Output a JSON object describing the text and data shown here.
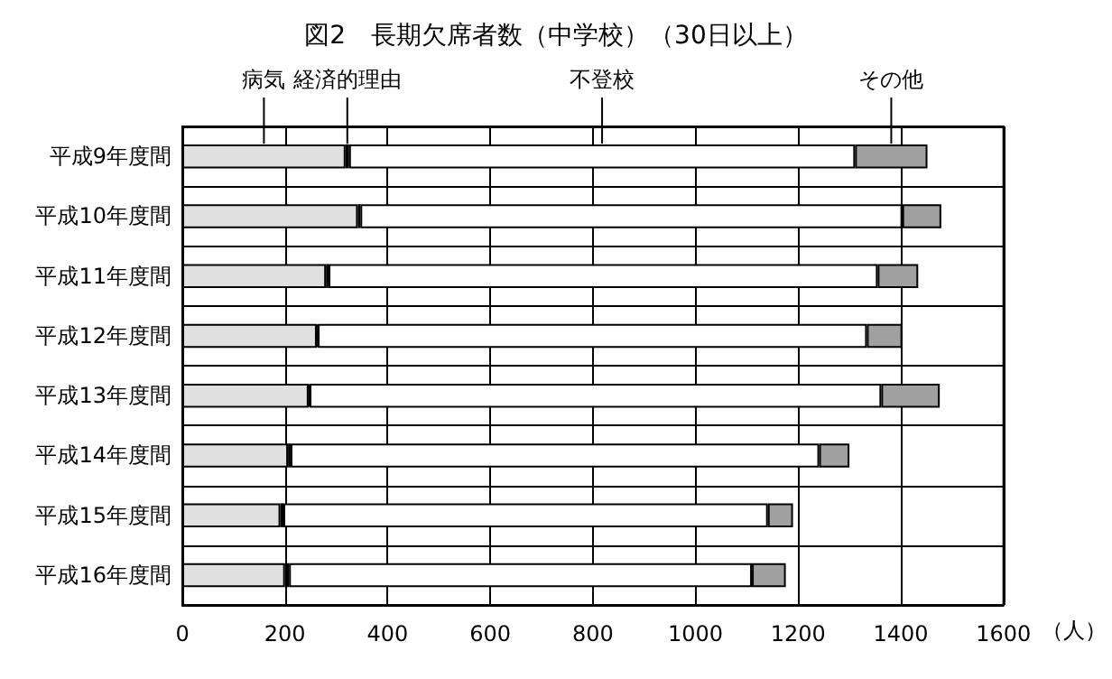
{
  "chart_data": {
    "type": "bar",
    "title": "図2　長期欠席者数（中学校）（30日以上）",
    "xlabel": "（人）",
    "orientation": "horizontal",
    "stacked": true,
    "categories": [
      "平成9年度間",
      "平成10年度間",
      "平成11年度間",
      "平成12年度間",
      "平成13年度間",
      "平成14年度間",
      "平成15年度間",
      "平成16年度間"
    ],
    "series": [
      {
        "name": "病気",
        "color": "#e0e0e0",
        "values": [
          318,
          342,
          280,
          262,
          246,
          206,
          191,
          200
        ]
      },
      {
        "name": "経済的理由",
        "color": "#000000",
        "values": [
          7,
          5,
          5,
          2,
          2,
          5,
          6,
          8
        ]
      },
      {
        "name": "不登校",
        "color": "#ffffff",
        "values": [
          986,
          1056,
          1070,
          1070,
          1114,
          1030,
          944,
          902
        ]
      },
      {
        "name": "その他",
        "color": "#a0a0a0",
        "values": [
          141,
          76,
          79,
          69,
          114,
          59,
          49,
          66
        ]
      }
    ],
    "xlim": [
      0,
      1600
    ],
    "xticks": [
      0,
      200,
      400,
      600,
      800,
      1000,
      1200,
      1400,
      1600
    ],
    "grid": true
  }
}
